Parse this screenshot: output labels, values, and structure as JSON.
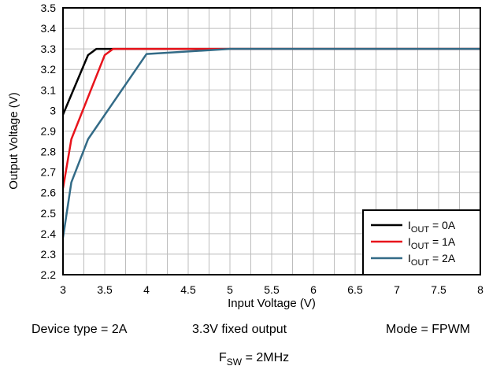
{
  "chart_data": {
    "type": "line",
    "xlabel": "Input Voltage (V)",
    "ylabel": "Output Voltage (V)",
    "xlim": [
      3,
      8
    ],
    "ylim": [
      2.2,
      3.5
    ],
    "x_ticks": [
      3,
      3.5,
      4,
      4.5,
      5,
      5.5,
      6,
      6.5,
      7,
      7.5,
      8
    ],
    "x_tick_labels": [
      "3",
      "3.5",
      "4",
      "4.5",
      "5",
      "5.5",
      "6",
      "6.5",
      "7",
      "7.5",
      "8"
    ],
    "y_ticks": [
      2.2,
      2.3,
      2.4,
      2.5,
      2.6,
      2.7,
      2.8,
      2.9,
      3.0,
      3.1,
      3.2,
      3.3,
      3.4,
      3.5
    ],
    "y_tick_labels": [
      "2.2",
      "2.3",
      "2.4",
      "2.5",
      "2.6",
      "2.7",
      "2.8",
      "2.9",
      "3",
      "3.1",
      "3.2",
      "3.3",
      "3.4",
      "3.5"
    ],
    "grid": true,
    "legend_position": "bottom-right",
    "series": [
      {
        "name": "I_OUT = 0A",
        "label_main": "I",
        "label_sub": "OUT",
        "label_rest": " = 0A",
        "color": "#000000",
        "x": [
          3.0,
          3.3,
          3.4,
          3.5,
          8.0
        ],
        "y": [
          2.98,
          3.27,
          3.3,
          3.3,
          3.3
        ]
      },
      {
        "name": "I_OUT = 1A",
        "label_main": "I",
        "label_sub": "OUT",
        "label_rest": " = 1A",
        "color": "#e8141c",
        "x": [
          3.0,
          3.1,
          3.5,
          3.6,
          5.0,
          8.0
        ],
        "y": [
          2.62,
          2.86,
          3.27,
          3.3,
          3.3,
          3.3
        ]
      },
      {
        "name": "I_OUT = 2A",
        "label_main": "I",
        "label_sub": "OUT",
        "label_rest": " = 2A",
        "color": "#336b87",
        "x": [
          3.0,
          3.1,
          3.3,
          4.0,
          5.0,
          8.0
        ],
        "y": [
          2.38,
          2.65,
          2.86,
          3.275,
          3.3,
          3.3
        ]
      }
    ],
    "annotations": {
      "device_type": "Device type = 2A",
      "fixed_output": "3.3V fixed output",
      "mode": "Mode = FPWM",
      "fsw_main": "F",
      "fsw_sub": "SW",
      "fsw_rest": " = 2MHz"
    }
  }
}
